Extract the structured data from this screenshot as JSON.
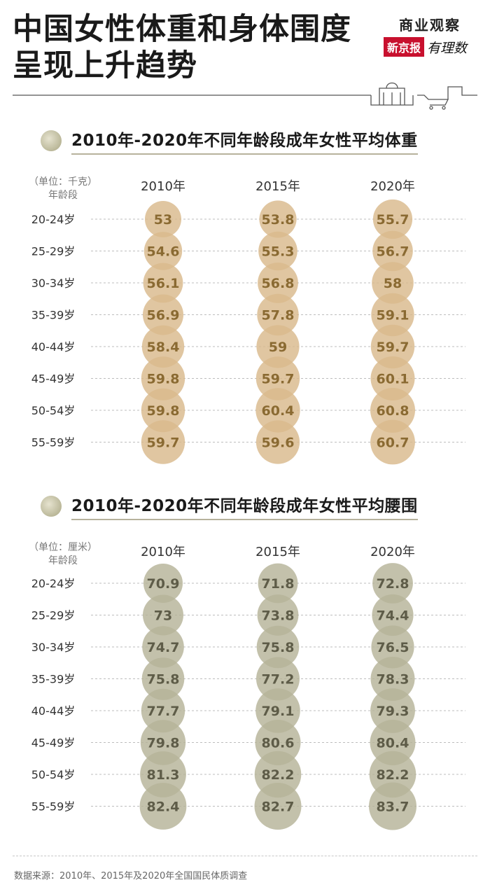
{
  "header": {
    "title_line1": "中国女性体重和身体围度",
    "title_line2": "呈现上升趋势",
    "brand_top": "商业观察",
    "brand_red": "新京报",
    "brand_script": "有理数"
  },
  "colors": {
    "weight_bubble": "#d9b98c",
    "weight_text": "#8a6a32",
    "waist_bubble": "#b6b399",
    "waist_text": "#5e5c48",
    "weight_dot": "#a8a582",
    "waist_dot": "#a8a582"
  },
  "chart_data": [
    {
      "type": "table",
      "title": "2010年-2020年不同年龄段成年女性平均体重",
      "unit_label": "（单位：千克）",
      "row_header": "年龄段",
      "years": [
        "2010年",
        "2015年",
        "2020年"
      ],
      "age_groups": [
        "20-24岁",
        "25-29岁",
        "30-34岁",
        "35-39岁",
        "40-44岁",
        "45-49岁",
        "50-54岁",
        "55-59岁"
      ],
      "series": [
        {
          "name": "2010年",
          "values": [
            "53",
            "54.6",
            "56.1",
            "56.9",
            "58.4",
            "59.8",
            "59.8",
            "59.7"
          ]
        },
        {
          "name": "2015年",
          "values": [
            "53.8",
            "55.3",
            "56.8",
            "57.8",
            "59",
            "59.7",
            "60.4",
            "59.6"
          ]
        },
        {
          "name": "2020年",
          "values": [
            "55.7",
            "56.7",
            "58",
            "59.1",
            "59.7",
            "60.1",
            "60.8",
            "60.7"
          ]
        }
      ]
    },
    {
      "type": "table",
      "title": "2010年-2020年不同年龄段成年女性平均腰围",
      "unit_label": "（单位：厘米）",
      "row_header": "年龄段",
      "years": [
        "2010年",
        "2015年",
        "2020年"
      ],
      "age_groups": [
        "20-24岁",
        "25-29岁",
        "30-34岁",
        "35-39岁",
        "40-44岁",
        "45-49岁",
        "50-54岁",
        "55-59岁"
      ],
      "series": [
        {
          "name": "2010年",
          "values": [
            "70.9",
            "73",
            "74.7",
            "75.8",
            "77.7",
            "79.8",
            "81.3",
            "82.4"
          ]
        },
        {
          "name": "2015年",
          "values": [
            "71.8",
            "73.8",
            "75.8",
            "77.2",
            "79.1",
            "80.6",
            "82.2",
            "82.7"
          ]
        },
        {
          "name": "2020年",
          "values": [
            "72.8",
            "74.4",
            "76.5",
            "78.3",
            "79.3",
            "80.4",
            "82.2",
            "83.7"
          ]
        }
      ]
    }
  ],
  "footer": {
    "source": "数据来源：2010年、2015年及2020年全国国民体质调查"
  }
}
